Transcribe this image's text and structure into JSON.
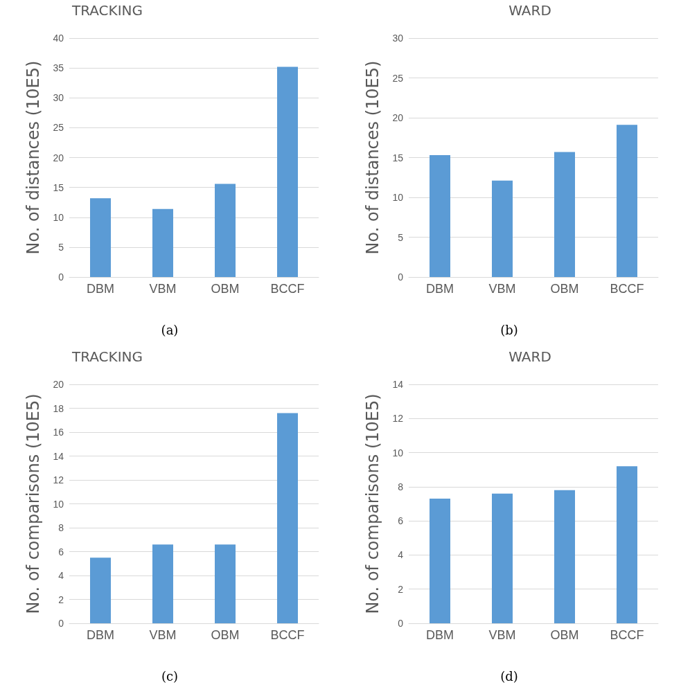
{
  "chart_data": [
    {
      "type": "bar",
      "title": "TRACKING",
      "ylabel": "No. of distances (10E5)",
      "categories": [
        "DBM",
        "VBM",
        "OBM",
        "BCCF"
      ],
      "values": [
        13.2,
        11.4,
        15.6,
        35.2
      ],
      "color": "#5b9bd5",
      "ylim": [
        0,
        40
      ],
      "yticks": [
        0,
        5,
        10,
        15,
        20,
        25,
        30,
        35,
        40
      ],
      "grid": "y",
      "annotations": [
        "(a)"
      ]
    },
    {
      "type": "bar",
      "title": "WARD",
      "ylabel": "No. of distances (10E5)",
      "categories": [
        "DBM",
        "VBM",
        "OBM",
        "BCCF"
      ],
      "values": [
        15.3,
        12.1,
        15.7,
        19.1
      ],
      "color": "#5b9bd5",
      "ylim": [
        0,
        30
      ],
      "yticks": [
        0,
        5,
        10,
        15,
        20,
        25,
        30
      ],
      "grid": "y",
      "annotations": [
        "(b)"
      ]
    },
    {
      "type": "bar",
      "title": "TRACKING",
      "ylabel": "No. of comparisons (10E5)",
      "categories": [
        "DBM",
        "VBM",
        "OBM",
        "BCCF"
      ],
      "values": [
        5.5,
        6.6,
        6.6,
        17.6
      ],
      "color": "#5b9bd5",
      "ylim": [
        0,
        20
      ],
      "yticks": [
        0,
        2,
        4,
        6,
        8,
        10,
        12,
        14,
        16,
        18,
        20
      ],
      "grid": "y",
      "annotations": [
        "(c)"
      ]
    },
    {
      "type": "bar",
      "title": "WARD",
      "ylabel": "No. of comparisons (10E5)",
      "categories": [
        "DBM",
        "VBM",
        "OBM",
        "BCCF"
      ],
      "values": [
        7.3,
        7.6,
        7.8,
        9.2
      ],
      "color": "#5b9bd5",
      "ylim": [
        0,
        14
      ],
      "yticks": [
        0,
        2,
        4,
        6,
        8,
        10,
        12,
        14
      ],
      "grid": "y",
      "annotations": [
        "(d)"
      ]
    }
  ]
}
